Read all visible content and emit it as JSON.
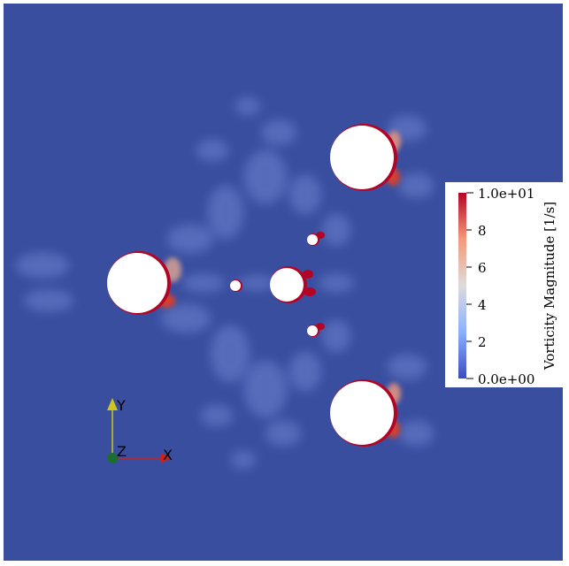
{
  "colorbar": {
    "title": "Vorticity Magnitude [1/s]",
    "ticks": [
      "1.0e+01",
      "8",
      "6",
      "4",
      "2",
      "0.0e+00"
    ],
    "colors": [
      "#3b4cc0",
      "#8db0fe",
      "#dddcdc",
      "#f49a7b",
      "#b40426"
    ]
  },
  "axes": {
    "x_label": "X",
    "y_label": "Y",
    "z_label": "Z",
    "x_color": "#cc1f1f",
    "y_color": "#d1c51b",
    "z_color": "#1c6f2e"
  },
  "colors": {
    "background": "#3a4ea0"
  }
}
